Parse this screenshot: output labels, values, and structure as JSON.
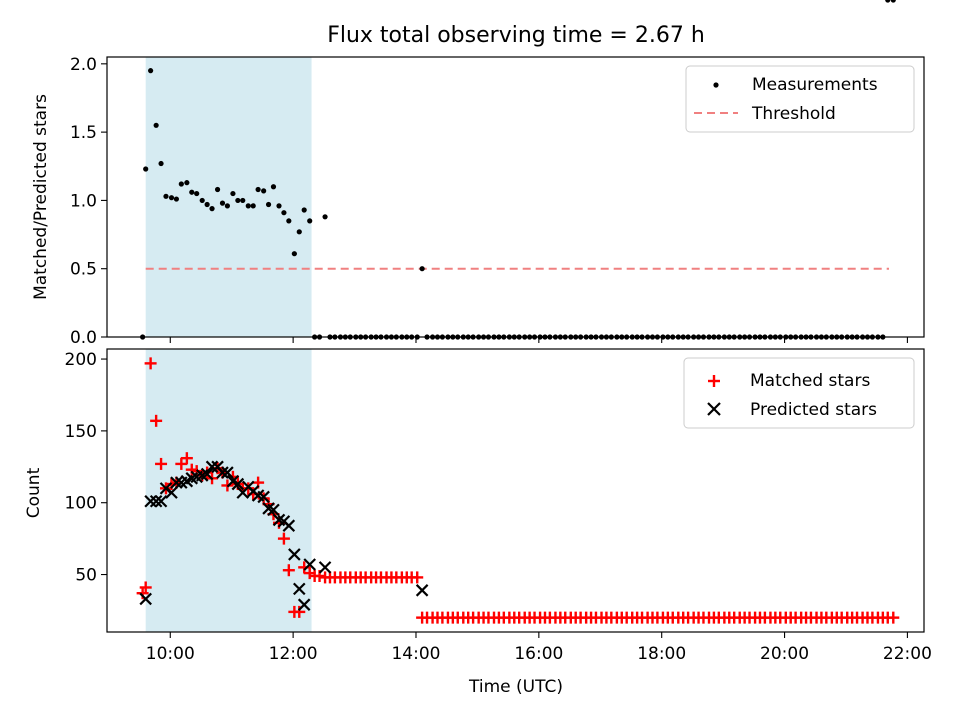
{
  "figure_title": "Flux total observing time = 2.67 h",
  "colors": {
    "shade": "#add8e6",
    "threshold": "#f08080",
    "measure": "#000000",
    "matched": "#ff0000",
    "predicted": "#000000"
  },
  "chart_data": [
    {
      "type": "scatter",
      "title": "Flux total observing time = 2.67 h",
      "ylabel": "Matched/Predicted stars",
      "xlabel": "",
      "xlim": [
        8.97,
        22.27
      ],
      "ylim": [
        0,
        2.05
      ],
      "yticks": [
        "0.0",
        "0.5",
        "1.0",
        "1.5",
        "2.0"
      ],
      "shade": [
        9.6,
        12.3
      ],
      "legend": [
        "Measurements",
        "Threshold"
      ],
      "threshold": {
        "name": "Threshold",
        "value": 0.5,
        "x": [
          9.6,
          21.7
        ]
      },
      "measurements_x": [
        9.55,
        9.6,
        9.68,
        9.77,
        9.85,
        9.93,
        10.02,
        10.1,
        10.18,
        10.27,
        10.35,
        10.43,
        10.52,
        10.6,
        10.68,
        10.77,
        10.85,
        10.93,
        11.02,
        11.1,
        11.18,
        11.27,
        11.35,
        11.43,
        11.52,
        11.6,
        11.68,
        11.77,
        11.85,
        11.93,
        12.02,
        12.1,
        12.18,
        12.27,
        12.35,
        12.43,
        12.52,
        12.6,
        12.68,
        12.77,
        12.85,
        12.93,
        13.02,
        13.1,
        13.18,
        13.27,
        13.35,
        13.43,
        13.52,
        13.6,
        13.68,
        13.77,
        13.85,
        13.93,
        14.02,
        14.1,
        14.18,
        14.27,
        14.35,
        14.43,
        14.52,
        14.6,
        14.68,
        14.77,
        14.85,
        14.93,
        15.02,
        15.1,
        15.18,
        15.27,
        15.35,
        15.43,
        15.52,
        15.6,
        15.68,
        15.77,
        15.85,
        15.93,
        16.02,
        16.1,
        16.18,
        16.27,
        16.35,
        16.43,
        16.52,
        16.6,
        16.68,
        16.77,
        16.85,
        16.93,
        17.02,
        17.1,
        17.18,
        17.27,
        17.35,
        17.43,
        17.52,
        17.6,
        17.68,
        17.77,
        17.85,
        17.93,
        18.02,
        18.1,
        18.18,
        18.27,
        18.35,
        18.43,
        18.52,
        18.6,
        18.68,
        18.77,
        18.85,
        18.93,
        19.02,
        19.1,
        19.18,
        19.27,
        19.35,
        19.43,
        19.52,
        19.6,
        19.68,
        19.77,
        19.85,
        19.93,
        20.02,
        20.1,
        20.18,
        20.27,
        20.35,
        20.43,
        20.52,
        20.6,
        20.68,
        20.77,
        20.85,
        20.93,
        21.02,
        21.1,
        21.18,
        21.27,
        21.35,
        21.43,
        21.52,
        21.6,
        21.68,
        21.77
      ],
      "measurements_y": [
        0,
        1.23,
        1.95,
        1.55,
        1.27,
        1.03,
        1.02,
        1.01,
        1.12,
        1.13,
        1.06,
        1.05,
        1.0,
        0.97,
        0.94,
        1.08,
        0.98,
        0.96,
        1.05,
        1.0,
        1.0,
        0.96,
        0.96,
        1.08,
        1.07,
        0.97,
        1.1,
        0.96,
        0.91,
        0.85,
        0.61,
        0.77,
        0.93,
        0.85,
        0,
        0,
        0.88,
        0,
        0,
        0,
        0,
        0,
        0,
        0,
        0,
        0,
        0,
        0,
        0,
        0,
        0,
        0,
        0,
        0,
        0,
        0.5,
        0,
        0,
        0,
        0,
        0,
        0,
        0,
        0,
        0,
        0,
        0,
        0,
        0,
        0,
        0,
        0,
        0,
        0,
        0,
        0,
        0,
        0,
        0,
        0,
        0,
        0,
        0,
        0,
        0,
        0,
        0,
        0,
        0,
        0,
        0,
        0,
        0,
        0,
        0,
        0,
        0,
        0,
        0,
        0,
        0,
        0,
        0,
        0,
        0,
        0,
        0,
        0,
        0,
        0,
        0,
        0,
        0,
        0,
        0,
        0,
        0,
        0,
        0,
        0,
        0,
        0,
        0,
        0,
        0,
        0,
        0,
        0,
        0,
        0,
        0,
        0,
        0,
        0,
        0,
        0,
        0,
        0,
        0,
        0,
        0,
        0,
        0,
        0,
        0,
        0
      ]
    },
    {
      "type": "scatter",
      "xlabel": "Time (UTC)",
      "ylabel": "Count",
      "xlim": [
        8.97,
        22.27
      ],
      "ylim": [
        10,
        207
      ],
      "yticks": [
        "50",
        "100",
        "150",
        "200"
      ],
      "xticks": [
        "10:00",
        "12:00",
        "14:00",
        "16:00",
        "18:00",
        "20:00",
        "22:00"
      ],
      "shade": [
        9.6,
        12.3
      ],
      "legend": [
        "Matched stars",
        "Predicted stars"
      ],
      "matched_x": [
        9.55,
        9.6,
        9.68,
        9.77,
        9.85,
        9.93,
        10.02,
        10.1,
        10.18,
        10.27,
        10.35,
        10.43,
        10.52,
        10.6,
        10.68,
        10.77,
        10.85,
        10.93,
        11.02,
        11.1,
        11.18,
        11.27,
        11.35,
        11.43,
        11.52,
        11.6,
        11.68,
        11.77,
        11.85,
        11.93,
        12.02,
        12.1,
        12.18,
        12.27,
        12.35,
        12.43,
        12.52,
        12.6,
        12.68,
        12.77,
        12.85,
        12.93,
        13.02,
        13.1,
        13.18,
        13.27,
        13.35,
        13.43,
        13.52,
        13.6,
        13.68,
        13.77,
        13.85,
        13.93,
        14.02,
        14.1,
        14.18,
        14.27,
        14.35,
        14.43,
        14.52,
        14.6,
        14.68,
        14.77,
        14.85,
        14.93,
        15.02,
        15.1,
        15.18,
        15.27,
        15.35,
        15.43,
        15.52,
        15.6,
        15.68,
        15.77,
        15.85,
        15.93,
        16.02,
        16.1,
        16.18,
        16.27,
        16.35,
        16.43,
        16.52,
        16.6,
        16.68,
        16.77,
        16.85,
        16.93,
        17.02,
        17.1,
        17.18,
        17.27,
        17.35,
        17.43,
        17.52,
        17.6,
        17.68,
        17.77,
        17.85,
        17.93,
        18.02,
        18.1,
        18.18,
        18.27,
        18.35,
        18.43,
        18.52,
        18.6,
        18.68,
        18.77,
        18.85,
        18.93,
        19.02,
        19.1,
        19.18,
        19.27,
        19.35,
        19.43,
        19.52,
        19.6,
        19.68,
        19.77,
        19.85,
        19.93,
        20.02,
        20.1,
        20.18,
        20.27,
        20.35,
        20.43,
        20.52,
        20.6,
        20.68,
        20.77,
        20.85,
        20.93,
        21.02,
        21.1,
        21.18,
        21.27,
        21.35,
        21.43,
        21.52,
        21.6,
        21.68,
        21.77
      ],
      "matched_y": [
        37,
        41,
        197,
        157,
        127,
        110,
        113,
        114,
        127,
        131,
        123,
        122,
        119,
        121,
        117,
        124,
        121,
        112,
        118,
        113,
        110,
        110,
        106,
        114,
        103,
        99,
        92,
        86,
        75,
        53,
        24,
        24,
        55,
        51,
        49,
        49,
        48,
        48,
        48,
        48,
        48,
        48,
        48,
        48,
        48,
        48,
        48,
        48,
        48,
        48,
        48,
        48,
        48,
        48,
        48,
        20,
        20,
        20,
        20,
        20,
        20,
        20,
        20,
        20,
        20,
        20,
        20,
        20,
        20,
        20,
        20,
        20,
        20,
        20,
        20,
        20,
        20,
        20,
        20,
        20,
        20,
        20,
        20,
        20,
        20,
        20,
        20,
        20,
        20,
        20,
        20,
        20,
        20,
        20,
        20,
        20,
        20,
        20,
        20,
        20,
        20,
        20,
        20,
        20,
        20,
        20,
        20,
        20,
        20,
        20,
        20,
        20,
        20,
        20,
        20,
        20,
        20,
        20,
        20,
        20,
        20,
        20,
        20,
        20,
        20,
        20,
        20,
        20,
        20,
        20,
        20,
        20,
        20,
        20,
        20,
        20,
        20,
        20,
        20,
        20,
        20,
        20,
        20,
        20,
        20,
        20,
        20,
        20
      ],
      "predicted_x": [
        9.6,
        9.68,
        9.77,
        9.85,
        9.93,
        10.02,
        10.1,
        10.18,
        10.27,
        10.35,
        10.43,
        10.52,
        10.6,
        10.68,
        10.77,
        10.85,
        10.93,
        11.02,
        11.1,
        11.18,
        11.27,
        11.35,
        11.43,
        11.52,
        11.6,
        11.68,
        11.77,
        11.85,
        11.93,
        12.02,
        12.1,
        12.18,
        12.27,
        12.52,
        14.1
      ],
      "predicted_y": [
        33,
        101,
        101,
        101,
        110,
        107,
        114,
        114,
        115,
        117,
        118,
        119,
        120,
        125,
        125,
        121,
        121,
        115,
        113,
        107,
        111,
        108,
        105,
        104,
        96,
        95,
        88,
        87,
        84,
        64,
        40,
        29,
        57,
        55,
        39
      ]
    }
  ]
}
